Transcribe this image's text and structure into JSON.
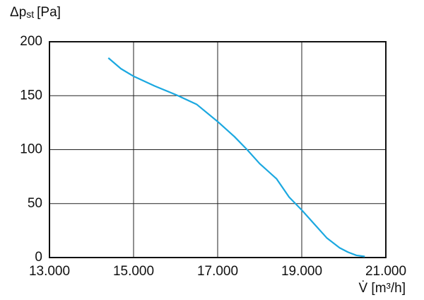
{
  "chart_data": {
    "type": "line",
    "y_label": {
      "main": "Δp",
      "sub": "st",
      "unit": "[Pa]"
    },
    "x_label": "V̇ [m³/h]",
    "x": [
      14400,
      14700,
      15000,
      15500,
      16000,
      16500,
      17000,
      17400,
      17700,
      18000,
      18400,
      18700,
      19000,
      19300,
      19600,
      19900,
      20100,
      20300,
      20500
    ],
    "series": [
      {
        "name": "Δpst",
        "color": "#1ba8e0",
        "values": [
          185,
          175,
          168,
          159,
          151,
          142,
          126,
          112,
          100,
          87,
          73,
          56,
          44,
          31,
          18,
          9,
          5,
          2,
          1
        ]
      }
    ],
    "xlim": [
      13000,
      21000
    ],
    "xticks": [
      {
        "value": 13000,
        "label": "13.000"
      },
      {
        "value": 15000,
        "label": "15.000"
      },
      {
        "value": 17000,
        "label": "17.000"
      },
      {
        "value": 19000,
        "label": "19.000"
      },
      {
        "value": 21000,
        "label": "21.000"
      }
    ],
    "ylim": [
      0,
      200
    ],
    "yticks": [
      0,
      50,
      100,
      150,
      200
    ],
    "grid": true
  }
}
